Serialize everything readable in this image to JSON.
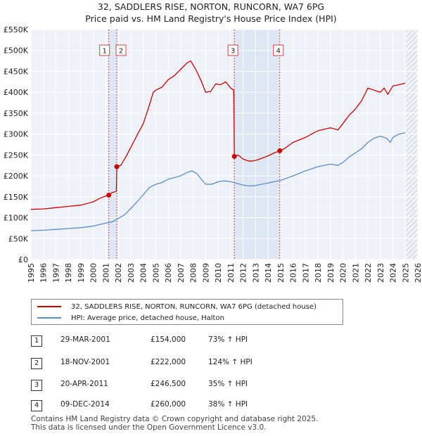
{
  "chart_data": {
    "type": "line",
    "title": "32, SADDLERS RISE, NORTON, RUNCORN, WA7 6PG",
    "subtitle": "Price paid vs. HM Land Registry's House Price Index (HPI)",
    "xlim": [
      1995,
      2026
    ],
    "ylim": [
      0,
      550000
    ],
    "y_ticks": [
      {
        "value": 0,
        "label": "£0"
      },
      {
        "value": 50000,
        "label": "£50K"
      },
      {
        "value": 100000,
        "label": "£100K"
      },
      {
        "value": 150000,
        "label": "£150K"
      },
      {
        "value": 200000,
        "label": "£200K"
      },
      {
        "value": 250000,
        "label": "£250K"
      },
      {
        "value": 300000,
        "label": "£300K"
      },
      {
        "value": 350000,
        "label": "£350K"
      },
      {
        "value": 400000,
        "label": "£400K"
      },
      {
        "value": 450000,
        "label": "£450K"
      },
      {
        "value": 500000,
        "label": "£500K"
      },
      {
        "value": 550000,
        "label": "£550K"
      }
    ],
    "x_ticks": [
      "1995",
      "1996",
      "1997",
      "1998",
      "1999",
      "2000",
      "2001",
      "2002",
      "2003",
      "2004",
      "2005",
      "2006",
      "2007",
      "2008",
      "2009",
      "2010",
      "2011",
      "2012",
      "2013",
      "2014",
      "2015",
      "2016",
      "2017",
      "2018",
      "2019",
      "2020",
      "2021",
      "2022",
      "2023",
      "2024",
      "2025",
      "2026"
    ],
    "shaded_ranges": [
      {
        "from": 2001.24,
        "to": 2001.88
      },
      {
        "from": 2011.3,
        "to": 2014.94
      }
    ],
    "hatched_after": 2025.0,
    "series": [
      {
        "name": "32, SADDLERS RISE, NORTON, RUNCORN, WA7 6PG (detached house)",
        "color": "#cc0000",
        "points": [
          [
            1995.0,
            120000
          ],
          [
            1996.0,
            121000
          ],
          [
            1997.0,
            124000
          ],
          [
            1998.0,
            127000
          ],
          [
            1999.0,
            130000
          ],
          [
            2000.0,
            138000
          ],
          [
            2000.5,
            146000
          ],
          [
            2001.0,
            152000
          ],
          [
            2001.24,
            154000
          ],
          [
            2001.5,
            160000
          ],
          [
            2001.84,
            163000
          ],
          [
            2001.88,
            222000
          ],
          [
            2002.2,
            225000
          ],
          [
            2002.6,
            245000
          ],
          [
            2003.0,
            268000
          ],
          [
            2003.5,
            297000
          ],
          [
            2004.0,
            325000
          ],
          [
            2004.5,
            370000
          ],
          [
            2004.8,
            400000
          ],
          [
            2005.0,
            405000
          ],
          [
            2005.5,
            412000
          ],
          [
            2006.0,
            430000
          ],
          [
            2006.5,
            440000
          ],
          [
            2007.0,
            455000
          ],
          [
            2007.5,
            470000
          ],
          [
            2007.8,
            475000
          ],
          [
            2008.2,
            455000
          ],
          [
            2008.6,
            430000
          ],
          [
            2009.0,
            400000
          ],
          [
            2009.4,
            402000
          ],
          [
            2009.8,
            420000
          ],
          [
            2010.2,
            418000
          ],
          [
            2010.6,
            425000
          ],
          [
            2011.0,
            410000
          ],
          [
            2011.25,
            405000
          ],
          [
            2011.3,
            246500
          ],
          [
            2011.6,
            250000
          ],
          [
            2012.0,
            240000
          ],
          [
            2012.5,
            235000
          ],
          [
            2013.0,
            237000
          ],
          [
            2013.5,
            242000
          ],
          [
            2014.0,
            248000
          ],
          [
            2014.5,
            255000
          ],
          [
            2014.94,
            260000
          ],
          [
            2015.3,
            265000
          ],
          [
            2016.0,
            280000
          ],
          [
            2017.0,
            292000
          ],
          [
            2017.5,
            300000
          ],
          [
            2018.0,
            308000
          ],
          [
            2019.0,
            315000
          ],
          [
            2019.6,
            310000
          ],
          [
            2020.0,
            325000
          ],
          [
            2020.5,
            345000
          ],
          [
            2021.0,
            360000
          ],
          [
            2021.5,
            380000
          ],
          [
            2022.0,
            410000
          ],
          [
            2022.5,
            405000
          ],
          [
            2023.0,
            400000
          ],
          [
            2023.3,
            410000
          ],
          [
            2023.6,
            395000
          ],
          [
            2024.0,
            415000
          ],
          [
            2024.5,
            418000
          ],
          [
            2025.0,
            422000
          ]
        ]
      },
      {
        "name": "HPI: Average price, detached house, Halton",
        "color": "#5b8ec9",
        "points": [
          [
            1995.0,
            69000
          ],
          [
            1996.0,
            70000
          ],
          [
            1997.0,
            72000
          ],
          [
            1998.0,
            74000
          ],
          [
            1999.0,
            76000
          ],
          [
            2000.0,
            80000
          ],
          [
            2001.0,
            87000
          ],
          [
            2001.5,
            90000
          ],
          [
            2002.0,
            98000
          ],
          [
            2002.5,
            107000
          ],
          [
            2003.0,
            122000
          ],
          [
            2003.5,
            138000
          ],
          [
            2004.0,
            155000
          ],
          [
            2004.5,
            172000
          ],
          [
            2005.0,
            180000
          ],
          [
            2005.5,
            184000
          ],
          [
            2006.0,
            192000
          ],
          [
            2006.5,
            196000
          ],
          [
            2007.0,
            200000
          ],
          [
            2007.5,
            208000
          ],
          [
            2007.9,
            212000
          ],
          [
            2008.3,
            205000
          ],
          [
            2008.7,
            190000
          ],
          [
            2009.0,
            180000
          ],
          [
            2009.5,
            180000
          ],
          [
            2010.0,
            186000
          ],
          [
            2010.5,
            188000
          ],
          [
            2011.0,
            186000
          ],
          [
            2011.5,
            182000
          ],
          [
            2012.0,
            178000
          ],
          [
            2012.5,
            176000
          ],
          [
            2013.0,
            177000
          ],
          [
            2013.5,
            180000
          ],
          [
            2014.0,
            183000
          ],
          [
            2014.5,
            186000
          ],
          [
            2015.0,
            189000
          ],
          [
            2016.0,
            200000
          ],
          [
            2017.0,
            212000
          ],
          [
            2018.0,
            222000
          ],
          [
            2019.0,
            228000
          ],
          [
            2019.6,
            225000
          ],
          [
            2020.0,
            232000
          ],
          [
            2020.5,
            245000
          ],
          [
            2021.0,
            255000
          ],
          [
            2021.5,
            265000
          ],
          [
            2022.0,
            280000
          ],
          [
            2022.5,
            290000
          ],
          [
            2023.0,
            295000
          ],
          [
            2023.5,
            290000
          ],
          [
            2023.8,
            280000
          ],
          [
            2024.0,
            292000
          ],
          [
            2024.5,
            300000
          ],
          [
            2025.0,
            303000
          ]
        ]
      }
    ],
    "markers": [
      {
        "label": "1",
        "x": 2001.24,
        "value": 154000
      },
      {
        "label": "2",
        "x": 2001.88,
        "value": 222000
      },
      {
        "label": "3",
        "x": 2011.3,
        "value": 246500
      },
      {
        "label": "4",
        "x": 2014.94,
        "value": 260000
      }
    ]
  },
  "legend": {
    "property_label": "32, SADDLERS RISE, NORTON, RUNCORN, WA7 6PG (detached house)",
    "hpi_label": "HPI: Average price, detached house, Halton"
  },
  "transactions": [
    {
      "id": "1",
      "date": "29-MAR-2001",
      "price": "£154,000",
      "hpi": "73% ↑ HPI"
    },
    {
      "id": "2",
      "date": "18-NOV-2001",
      "price": "£222,000",
      "hpi": "124% ↑ HPI"
    },
    {
      "id": "3",
      "date": "20-APR-2011",
      "price": "£246,500",
      "hpi": "35% ↑ HPI"
    },
    {
      "id": "4",
      "date": "09-DEC-2014",
      "price": "£260,000",
      "hpi": "38% ↑ HPI"
    }
  ],
  "footer": {
    "line1": "Contains HM Land Registry data © Crown copyright and database right 2025.",
    "line2": "This data is licensed under the Open Government Licence v3.0."
  }
}
